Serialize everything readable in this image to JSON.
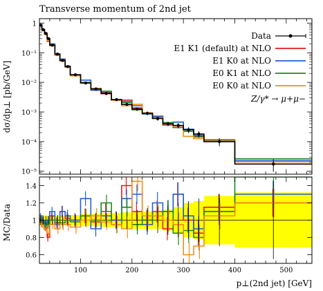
{
  "chart_data": {
    "type": "line",
    "title": "Transverse momentum of 2nd jet",
    "xlabel": "p⊥(2nd jet) [GeV]",
    "ylabel_main": "dσ/dp⊥ [pb/GeV]",
    "ylabel_ratio": "MC/Data",
    "process_label": "Z/γ* → μ+μ−",
    "xlim": [
      20,
      550
    ],
    "ylim_main_log10": [
      -5.1,
      0.15
    ],
    "ylim_ratio": [
      0.5,
      1.5
    ],
    "y_log_scale": true,
    "legend_position": "top-right",
    "x_ticks": [
      100,
      200,
      300,
      400,
      500
    ],
    "main_y_ticks": [
      {
        "exp": 0,
        "label": "1"
      },
      {
        "exp": -1,
        "label": "10⁻¹"
      },
      {
        "exp": -2,
        "label": "10⁻²"
      },
      {
        "exp": -3,
        "label": "10⁻³"
      },
      {
        "exp": -4,
        "label": "10⁻⁴"
      },
      {
        "exp": -5,
        "label": "10⁻⁵"
      }
    ],
    "ratio_y_ticks": [
      0.6,
      0.8,
      1.0,
      1.2,
      1.4
    ],
    "bin_edges": [
      20,
      25,
      30,
      35,
      40,
      50,
      60,
      70,
      80,
      100,
      120,
      140,
      160,
      180,
      200,
      220,
      240,
      260,
      280,
      300,
      320,
      340,
      400,
      550
    ],
    "data": {
      "name": "Data",
      "y": [
        0.85,
        0.6,
        0.45,
        0.3,
        0.18,
        0.09,
        0.055,
        0.034,
        0.018,
        0.0095,
        0.006,
        0.0042,
        0.0026,
        0.0018,
        0.00125,
        0.0009,
        0.0006,
        0.0004,
        0.00035,
        0.00025,
        0.00018,
        0.0001,
        1.75e-05
      ]
    },
    "series": [
      {
        "name": "E1 K1 (default) at NLO",
        "color": "#e31a1c",
        "ratio": [
          1.0,
          0.98,
          0.92,
          0.8,
          1.05,
          0.97,
          1.1,
          1.02,
          1.0,
          1.05,
          0.98,
          1.1,
          1.0,
          1.4,
          1.1,
          1.0,
          1.1,
          0.9,
          1.3,
          1.0,
          0.85,
          1.15,
          1.2
        ]
      },
      {
        "name": "E1 K0 at NLO",
        "color": "#1f5fd6",
        "ratio": [
          1.05,
          1.0,
          0.95,
          1.0,
          1.1,
          0.95,
          1.1,
          1.05,
          1.0,
          1.25,
          0.9,
          1.05,
          1.0,
          1.25,
          1.3,
          0.95,
          1.2,
          1.1,
          1.3,
          1.05,
          0.9,
          1.1,
          1.3
        ]
      },
      {
        "name": "E0 K1 at NLO",
        "color": "#1a8a1a",
        "ratio": [
          1.0,
          0.97,
          0.93,
          0.95,
          1.0,
          1.0,
          0.97,
          1.0,
          0.98,
          1.05,
          1.0,
          1.2,
          0.95,
          1.15,
          0.95,
          1.0,
          1.05,
          1.1,
          0.85,
          0.88,
          0.8,
          1.1,
          1.5
        ]
      },
      {
        "name": "E0 K0 at NLO",
        "color": "#f28c1a",
        "ratio": [
          0.95,
          0.92,
          0.9,
          0.85,
          0.95,
          0.9,
          0.95,
          0.95,
          0.92,
          1.0,
          1.05,
          0.98,
          0.95,
          0.9,
          1.45,
          1.05,
          1.05,
          1.0,
          0.95,
          0.6,
          0.7,
          1.05,
          1.2
        ]
      }
    ],
    "mc_uncertainty_band": {
      "color": "#ffff00",
      "low": [
        0.94,
        0.94,
        0.95,
        0.95,
        0.95,
        0.95,
        0.95,
        0.95,
        0.94,
        0.93,
        0.93,
        0.92,
        0.92,
        0.91,
        0.9,
        0.9,
        0.9,
        0.88,
        0.85,
        0.8,
        0.78,
        0.72,
        0.68
      ],
      "high": [
        1.06,
        1.06,
        1.05,
        1.05,
        1.05,
        1.05,
        1.05,
        1.05,
        1.06,
        1.07,
        1.07,
        1.08,
        1.08,
        1.09,
        1.1,
        1.1,
        1.1,
        1.12,
        1.15,
        1.2,
        1.22,
        1.28,
        1.32
      ]
    },
    "data_ratio_err": [
      0.05,
      0.05,
      0.05,
      0.05,
      0.05,
      0.05,
      0.06,
      0.06,
      0.06,
      0.07,
      0.08,
      0.08,
      0.09,
      0.1,
      0.12,
      0.14,
      0.15,
      0.17,
      0.2,
      0.22,
      0.25,
      0.3,
      0.45
    ]
  }
}
